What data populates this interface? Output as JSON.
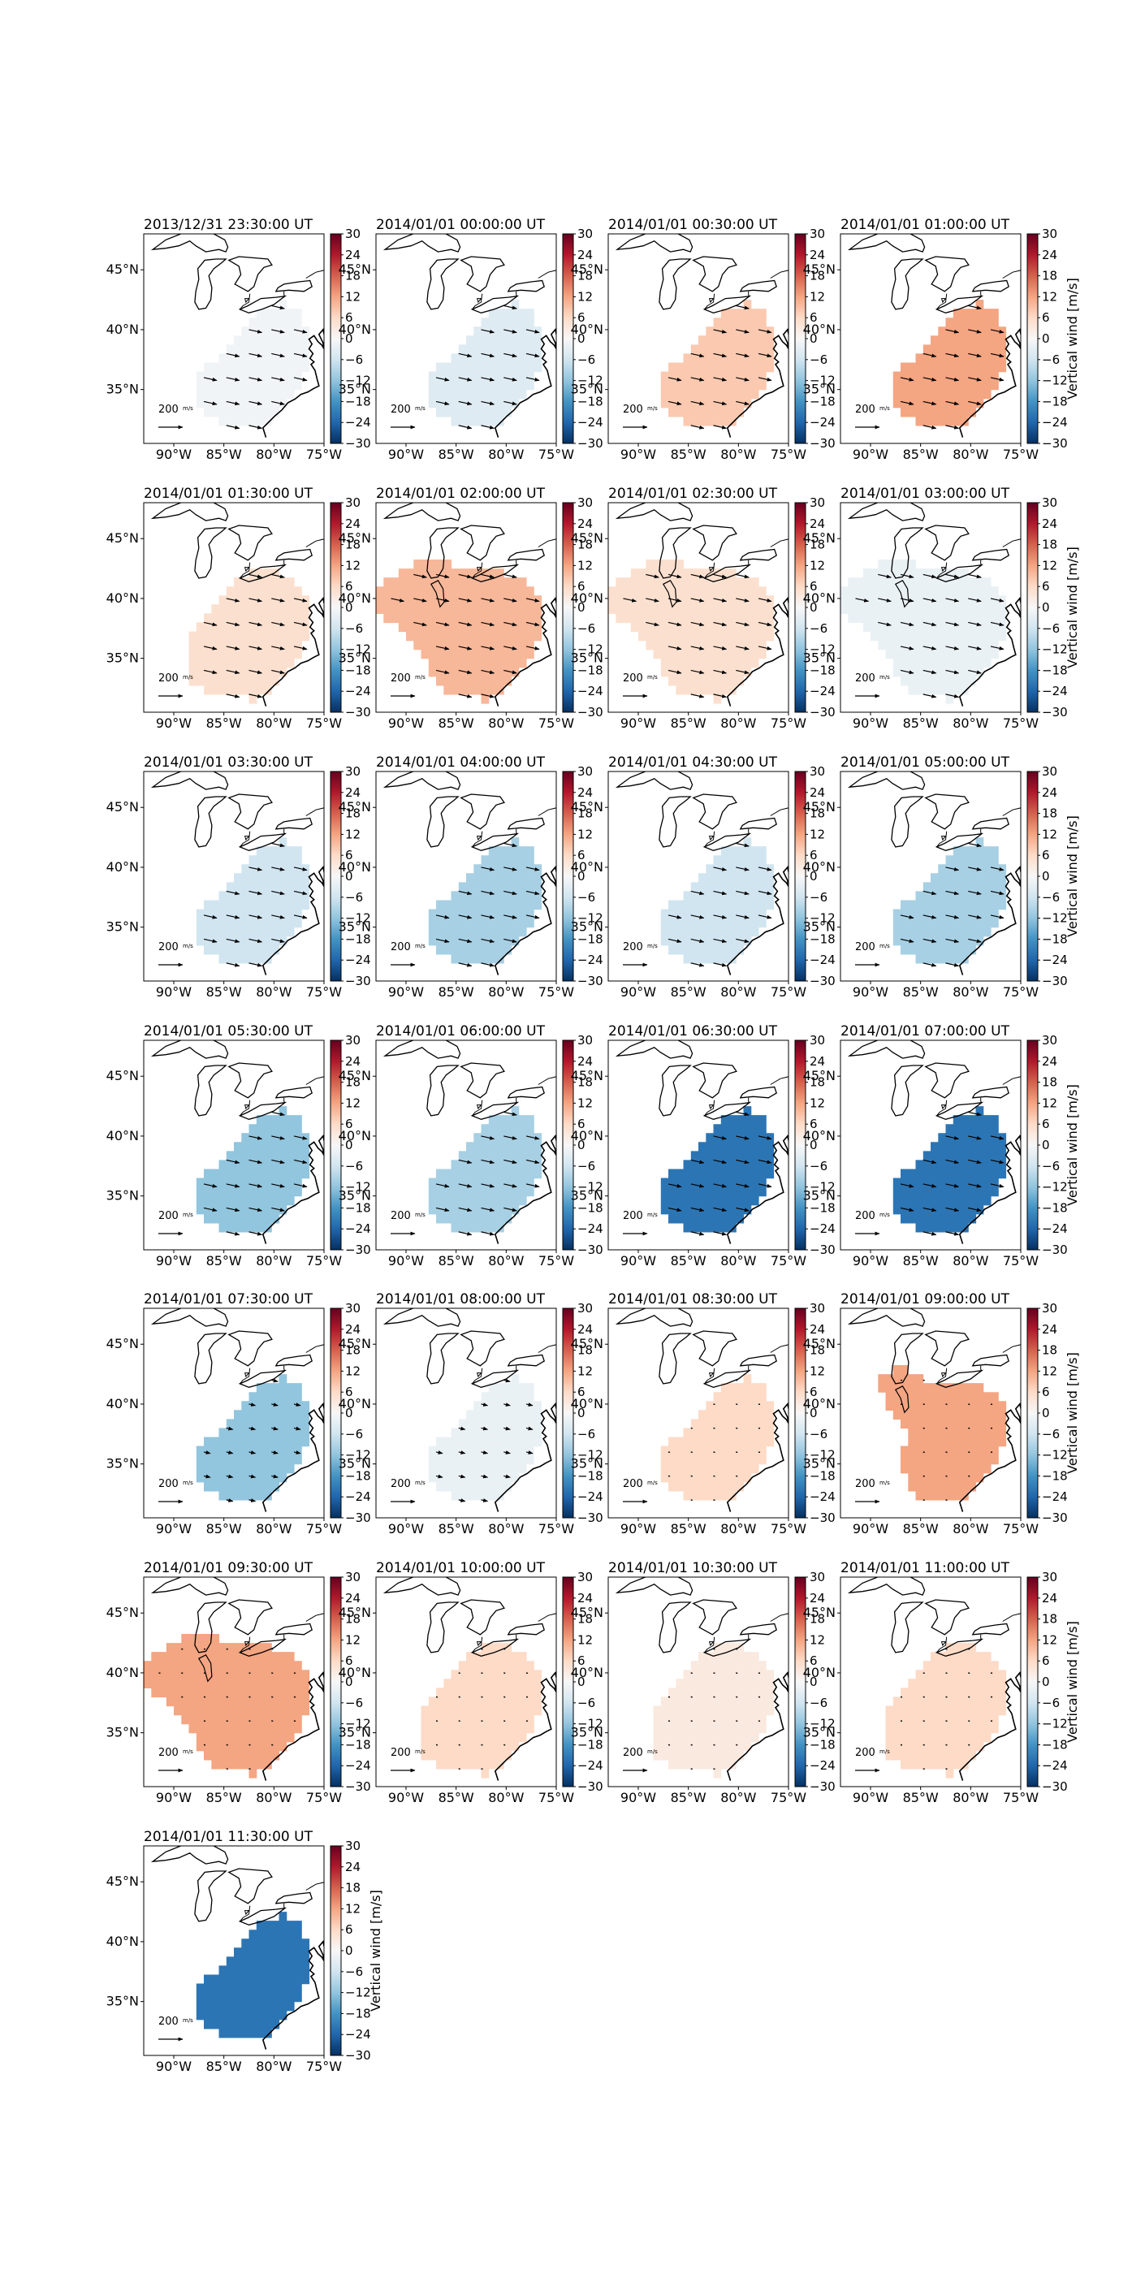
{
  "colorbar": {
    "label": "Vertical wind [m/s]",
    "ticks": [
      30,
      24,
      18,
      12,
      6,
      0,
      -6,
      -12,
      -18,
      -24,
      -30
    ],
    "range": [
      -30,
      30
    ]
  },
  "axes": {
    "lon_ticks": [
      "90°W",
      "85°W",
      "80°W",
      "75°W"
    ],
    "lat_ticks": [
      "45°N",
      "40°N",
      "35°N"
    ]
  },
  "reference_arrow": {
    "label": "200",
    "unit": "m/s"
  },
  "panels": [
    {
      "title": "2013/12/31 23:30:00 UT",
      "wind": -1,
      "region": "small",
      "arrows": "strong"
    },
    {
      "title": "2014/01/01 00:00:00 UT",
      "wind": -4,
      "region": "small",
      "arrows": "strong"
    },
    {
      "title": "2014/01/01 00:30:00 UT",
      "wind": 8,
      "region": "small",
      "arrows": "strong"
    },
    {
      "title": "2014/01/01 01:00:00 UT",
      "wind": 12,
      "region": "small",
      "arrows": "strong"
    },
    {
      "title": "2014/01/01 01:30:00 UT",
      "wind": 5,
      "region": "wide",
      "arrows": "strong"
    },
    {
      "title": "2014/01/01 02:00:00 UT",
      "wind": 10,
      "region": "huge",
      "arrows": "strong"
    },
    {
      "title": "2014/01/01 02:30:00 UT",
      "wind": 5,
      "region": "huge",
      "arrows": "strong"
    },
    {
      "title": "2014/01/01 03:00:00 UT",
      "wind": -2,
      "region": "huge",
      "arrows": "strong"
    },
    {
      "title": "2014/01/01 03:30:00 UT",
      "wind": -6,
      "region": "small",
      "arrows": "strong"
    },
    {
      "title": "2014/01/01 04:00:00 UT",
      "wind": -10,
      "region": "small",
      "arrows": "strong"
    },
    {
      "title": "2014/01/01 04:30:00 UT",
      "wind": -6,
      "region": "small",
      "arrows": "strong"
    },
    {
      "title": "2014/01/01 05:00:00 UT",
      "wind": -10,
      "region": "small",
      "arrows": "strong"
    },
    {
      "title": "2014/01/01 05:30:00 UT",
      "wind": -12,
      "region": "small",
      "arrows": "strong"
    },
    {
      "title": "2014/01/01 06:00:00 UT",
      "wind": -10,
      "region": "small",
      "arrows": "strong"
    },
    {
      "title": "2014/01/01 06:30:00 UT",
      "wind": -22,
      "region": "small",
      "arrows": "strong"
    },
    {
      "title": "2014/01/01 07:00:00 UT",
      "wind": -22,
      "region": "small",
      "arrows": "strong"
    },
    {
      "title": "2014/01/01 07:30:00 UT",
      "wind": -12,
      "region": "small",
      "arrows": "weak"
    },
    {
      "title": "2014/01/01 08:00:00 UT",
      "wind": -2,
      "region": "small",
      "arrows": "weak"
    },
    {
      "title": "2014/01/01 08:30:00 UT",
      "wind": 6,
      "region": "small",
      "arrows": "dots"
    },
    {
      "title": "2014/01/01 09:00:00 UT",
      "wind": 12,
      "region": "tall",
      "arrows": "dots"
    },
    {
      "title": "2014/01/01 09:30:00 UT",
      "wind": 12,
      "region": "huge",
      "arrows": "dots"
    },
    {
      "title": "2014/01/01 10:00:00 UT",
      "wind": 6,
      "region": "wide",
      "arrows": "dots"
    },
    {
      "title": "2014/01/01 10:30:00 UT",
      "wind": 3,
      "region": "wide",
      "arrows": "dots"
    },
    {
      "title": "2014/01/01 11:00:00 UT",
      "wind": 6,
      "region": "wide",
      "arrows": "dots"
    },
    {
      "title": "2014/01/01 11:30:00 UT",
      "wind": -22,
      "region": "small",
      "arrows": "none"
    }
  ]
}
